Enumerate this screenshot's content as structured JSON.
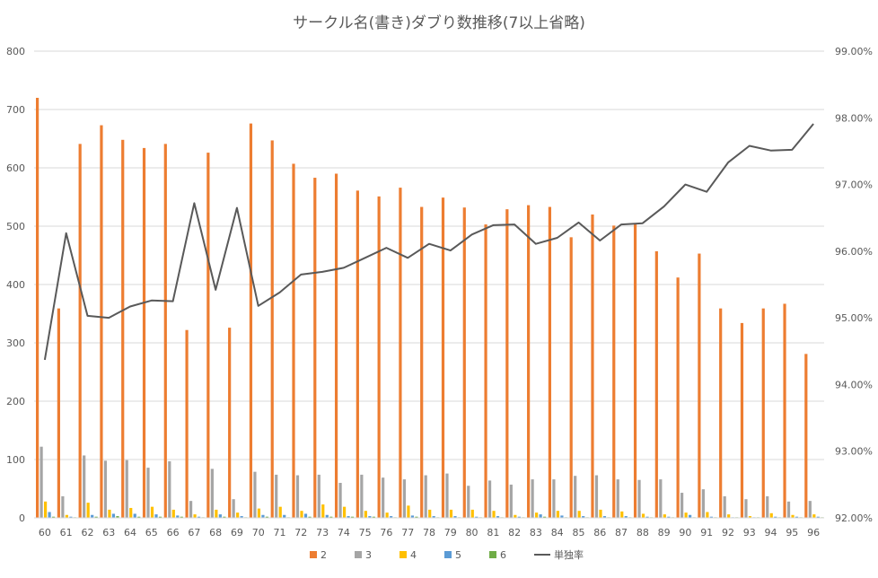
{
  "chart_data": {
    "type": "bar",
    "title": "サークル名(書き)ダブり数推移(7以上省略)",
    "categories": [
      "60",
      "61",
      "62",
      "63",
      "64",
      "65",
      "66",
      "67",
      "68",
      "69",
      "70",
      "71",
      "72",
      "73",
      "74",
      "75",
      "76",
      "77",
      "78",
      "79",
      "80",
      "81",
      "82",
      "83",
      "84",
      "85",
      "86",
      "87",
      "88",
      "89",
      "90",
      "91",
      "92",
      "93",
      "94",
      "95",
      "96"
    ],
    "y_left": {
      "min": 0,
      "max": 800,
      "ticks": [
        "0",
        "100",
        "200",
        "300",
        "400",
        "500",
        "600",
        "700",
        "800"
      ]
    },
    "y_right": {
      "min": 0.92,
      "max": 0.99,
      "ticks": [
        "92.00%",
        "93.00%",
        "94.00%",
        "95.00%",
        "96.00%",
        "97.00%",
        "98.00%",
        "99.00%"
      ]
    },
    "grid": true,
    "legend_position": "bottom",
    "series": [
      {
        "name": "2",
        "color": "#ED7D31",
        "axis": "left",
        "values": [
          720,
          359,
          641,
          673,
          648,
          634,
          641,
          322,
          626,
          326,
          676,
          647,
          607,
          583,
          590,
          561,
          551,
          566,
          533,
          549,
          532,
          503,
          529,
          536,
          533,
          481,
          520,
          501,
          503,
          457,
          412,
          453,
          359,
          334,
          359,
          367,
          281
        ]
      },
      {
        "name": "3",
        "color": "#A5A5A5",
        "axis": "left",
        "values": [
          122,
          37,
          107,
          98,
          99,
          86,
          97,
          29,
          84,
          32,
          79,
          74,
          73,
          74,
          60,
          74,
          69,
          66,
          73,
          76,
          55,
          64,
          57,
          66,
          66,
          72,
          73,
          66,
          65,
          66,
          43,
          49,
          37,
          32,
          37,
          28,
          29
        ]
      },
      {
        "name": "4",
        "color": "#FFC000",
        "axis": "left",
        "values": [
          28,
          5,
          26,
          14,
          17,
          19,
          14,
          6,
          14,
          9,
          16,
          19,
          12,
          23,
          19,
          12,
          9,
          21,
          14,
          14,
          14,
          12,
          5,
          9,
          12,
          12,
          14,
          11,
          7,
          6,
          9,
          10,
          6,
          3,
          8,
          5,
          6
        ]
      },
      {
        "name": "5",
        "color": "#5B9BD5",
        "axis": "left",
        "values": [
          10,
          2,
          5,
          7,
          7,
          6,
          4,
          2,
          6,
          3,
          5,
          5,
          7,
          5,
          3,
          3,
          3,
          4,
          3,
          3,
          2,
          3,
          2,
          6,
          4,
          3,
          3,
          3,
          2,
          2,
          5,
          2,
          1,
          1,
          2,
          2,
          2
        ]
      },
      {
        "name": "6",
        "color": "#70AD47",
        "axis": "left",
        "values": [
          2,
          1,
          2,
          3,
          2,
          2,
          2,
          1,
          2,
          1,
          2,
          1,
          2,
          2,
          2,
          2,
          1,
          2,
          1,
          1,
          1,
          1,
          1,
          2,
          1,
          1,
          1,
          1,
          1,
          1,
          1,
          1,
          1,
          1,
          1,
          1,
          1
        ]
      },
      {
        "name": "単独率",
        "color": "#595959",
        "axis": "right",
        "type": "line",
        "values": [
          0.9437,
          0.9627,
          0.9503,
          0.95,
          0.9517,
          0.9526,
          0.9525,
          0.9672,
          0.9542,
          0.9665,
          0.9518,
          0.9538,
          0.9565,
          0.9569,
          0.9575,
          0.959,
          0.9605,
          0.959,
          0.9611,
          0.9601,
          0.9625,
          0.9639,
          0.964,
          0.9611,
          0.962,
          0.9643,
          0.9616,
          0.964,
          0.9642,
          0.9667,
          0.97,
          0.9689,
          0.9733,
          0.9758,
          0.9751,
          0.9752,
          0.9791
        ]
      }
    ]
  }
}
